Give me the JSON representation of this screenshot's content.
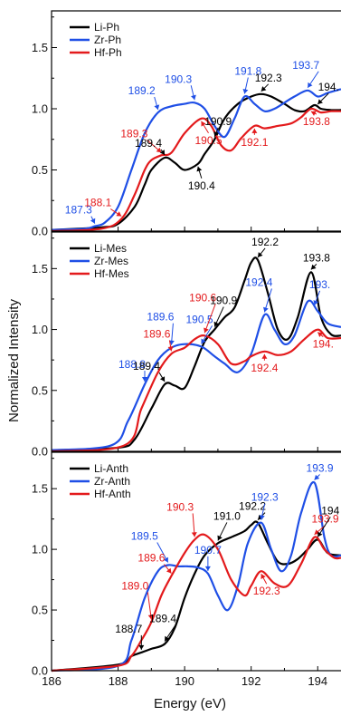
{
  "figure": {
    "ylabel": "Normalized Intensity",
    "xlabel": "Energy (eV)",
    "xlim": [
      186,
      194.7
    ],
    "xticks": [
      "186",
      "188",
      "190",
      "192",
      "194"
    ],
    "colors": {
      "Li": "#000000",
      "Zr": "#1f4fe6",
      "Hf": "#e31a1c"
    }
  },
  "chart_data": [
    {
      "type": "line",
      "panel": "top",
      "xlim": [
        186,
        194.7
      ],
      "ylim": [
        0,
        1.8
      ],
      "yticks": [
        "0.0",
        "0.5",
        "1.0",
        "1.5"
      ],
      "legend_position": "top-left",
      "series": [
        {
          "name": "Li-Ph",
          "color": "#000000",
          "x": [
            186,
            187.5,
            188.0,
            188.5,
            188.8,
            189.0,
            189.4,
            189.7,
            190.0,
            190.4,
            190.6,
            190.9,
            191.2,
            191.6,
            192.0,
            192.3,
            192.6,
            193.0,
            193.3,
            193.6,
            193.9,
            194.1,
            194.4,
            194.7
          ],
          "values": [
            0.01,
            0.03,
            0.06,
            0.2,
            0.38,
            0.5,
            0.6,
            0.56,
            0.5,
            0.55,
            0.63,
            0.75,
            0.92,
            1.04,
            1.1,
            1.12,
            1.1,
            1.04,
            0.99,
            0.98,
            1.03,
            1.0,
            0.99,
            0.99
          ]
        },
        {
          "name": "Zr-Ph",
          "color": "#1f4fe6",
          "x": [
            186,
            187.0,
            187.3,
            187.6,
            188.0,
            188.4,
            188.8,
            189.2,
            189.6,
            190.0,
            190.3,
            190.6,
            190.9,
            191.2,
            191.5,
            191.8,
            192.1,
            192.4,
            192.7,
            193.0,
            193.3,
            193.7,
            194.0,
            194.3,
            194.7
          ],
          "values": [
            0.01,
            0.02,
            0.04,
            0.07,
            0.2,
            0.5,
            0.8,
            0.97,
            1.02,
            1.04,
            1.05,
            1.0,
            0.86,
            0.77,
            0.92,
            1.1,
            1.04,
            0.98,
            1.0,
            1.05,
            1.1,
            1.15,
            1.1,
            1.13,
            1.16
          ]
        },
        {
          "name": "Hf-Ph",
          "color": "#e31a1c",
          "x": [
            186,
            187.5,
            188.1,
            188.5,
            188.8,
            189.0,
            189.3,
            189.6,
            190.0,
            190.5,
            190.8,
            191.1,
            191.4,
            191.7,
            192.1,
            192.4,
            192.8,
            193.2,
            193.5,
            193.8,
            194.1,
            194.4,
            194.7
          ],
          "values": [
            0.0,
            0.02,
            0.1,
            0.3,
            0.5,
            0.58,
            0.62,
            0.64,
            0.8,
            0.92,
            0.86,
            0.7,
            0.66,
            0.76,
            0.86,
            0.84,
            0.86,
            0.88,
            0.93,
            1.0,
            0.97,
            0.98,
            0.98
          ]
        }
      ],
      "annotations": [
        {
          "text": "187.3",
          "series": "Zr-Ph",
          "x": 187.3
        },
        {
          "text": "188.1",
          "series": "Hf-Ph",
          "x": 188.1
        },
        {
          "text": "189.2",
          "series": "Zr-Ph",
          "x": 189.2
        },
        {
          "text": "189.3",
          "series": "Hf-Ph",
          "x": 189.3
        },
        {
          "text": "189.4",
          "series": "Li-Ph",
          "x": 189.4
        },
        {
          "text": "190.3",
          "series": "Zr-Ph",
          "x": 190.3
        },
        {
          "text": "190.4",
          "series": "Li-Ph",
          "x": 190.4
        },
        {
          "text": "190.5",
          "series": "Hf-Ph",
          "x": 190.5
        },
        {
          "text": "190.9",
          "series": "Li-Ph",
          "x": 190.9
        },
        {
          "text": "191.8",
          "series": "Zr-Ph",
          "x": 191.8
        },
        {
          "text": "192.1",
          "series": "Hf-Ph",
          "x": 192.1
        },
        {
          "text": "192.3",
          "series": "Li-Ph",
          "x": 192.3
        },
        {
          "text": "193.7",
          "series": "Zr-Ph",
          "x": 193.7
        },
        {
          "text": "193.8",
          "series": "Hf-Ph",
          "x": 193.8
        },
        {
          "text": "194.",
          "series": "Li-Ph",
          "x": 194.0
        }
      ]
    },
    {
      "type": "line",
      "panel": "middle",
      "xlim": [
        186,
        194.7
      ],
      "ylim": [
        0,
        1.8
      ],
      "yticks": [
        "0.0",
        "0.5",
        "1.0",
        "1.5"
      ],
      "legend_position": "top-left",
      "series": [
        {
          "name": "Li-Mes",
          "color": "#000000",
          "x": [
            186,
            188.0,
            188.5,
            189.0,
            189.4,
            189.7,
            190.0,
            190.3,
            190.6,
            190.9,
            191.2,
            191.5,
            191.8,
            192.0,
            192.2,
            192.5,
            192.8,
            193.1,
            193.4,
            193.8,
            194.1,
            194.4,
            194.7
          ],
          "values": [
            0.01,
            0.03,
            0.1,
            0.35,
            0.55,
            0.54,
            0.52,
            0.7,
            0.9,
            1.0,
            1.1,
            1.18,
            1.4,
            1.55,
            1.57,
            1.3,
            1.0,
            0.92,
            1.1,
            1.47,
            1.1,
            0.96,
            0.95
          ]
        },
        {
          "name": "Zr-Mes",
          "color": "#1f4fe6",
          "x": [
            186,
            187.8,
            188.3,
            188.8,
            189.2,
            189.6,
            190.0,
            190.5,
            190.9,
            191.2,
            191.6,
            192.0,
            192.4,
            192.7,
            193.0,
            193.3,
            193.7,
            194.0,
            194.3,
            194.7
          ],
          "values": [
            0.01,
            0.05,
            0.25,
            0.55,
            0.75,
            0.85,
            0.88,
            0.86,
            0.78,
            0.72,
            0.65,
            0.8,
            1.12,
            1.0,
            0.88,
            0.95,
            1.23,
            1.15,
            1.05,
            1.02
          ]
        },
        {
          "name": "Hf-Mes",
          "color": "#e31a1c",
          "x": [
            186,
            188.2,
            188.7,
            189.2,
            189.6,
            190.0,
            190.3,
            190.6,
            191.0,
            191.4,
            191.8,
            192.0,
            192.4,
            192.8,
            193.2,
            193.6,
            194.0,
            194.3,
            194.7
          ],
          "values": [
            0.0,
            0.05,
            0.35,
            0.65,
            0.8,
            0.85,
            0.92,
            0.95,
            0.88,
            0.72,
            0.74,
            0.78,
            0.82,
            0.79,
            0.82,
            0.92,
            1.0,
            0.93,
            0.93
          ]
        }
      ],
      "annotations": [
        {
          "text": "188.8",
          "series": "Zr-Mes",
          "x": 188.8
        },
        {
          "text": "189.4",
          "series": "Li-Mes",
          "x": 189.4
        },
        {
          "text": "189.6",
          "series": "Zr-Mes",
          "x": 189.6
        },
        {
          "text": "189.6",
          "series": "Hf-Mes",
          "x": 189.6
        },
        {
          "text": "190.5",
          "series": "Zr-Mes",
          "x": 190.5
        },
        {
          "text": "190.6",
          "series": "Hf-Mes",
          "x": 190.6
        },
        {
          "text": "190.9",
          "series": "Li-Mes",
          "x": 190.9
        },
        {
          "text": "192.2",
          "series": "Li-Mes",
          "x": 192.2
        },
        {
          "text": "192.4",
          "series": "Zr-Mes",
          "x": 192.4
        },
        {
          "text": "192.4",
          "series": "Hf-Mes",
          "x": 192.4
        },
        {
          "text": "193.8",
          "series": "Li-Mes",
          "x": 193.8
        },
        {
          "text": "193.",
          "series": "Zr-Mes",
          "x": 193.9
        },
        {
          "text": "194.",
          "series": "Hf-Mes",
          "x": 194.0
        }
      ]
    },
    {
      "type": "line",
      "panel": "bottom",
      "xlim": [
        186,
        194.7
      ],
      "ylim": [
        0,
        1.8
      ],
      "yticks": [
        "0.0",
        "0.5",
        "1.0",
        "1.5"
      ],
      "xticks": [
        "186",
        "188",
        "190",
        "192",
        "194"
      ],
      "legend_position": "top-left",
      "series": [
        {
          "name": "Li-Anth",
          "color": "#000000",
          "x": [
            186,
            188.0,
            188.4,
            188.7,
            189.0,
            189.4,
            189.7,
            190.0,
            190.3,
            190.6,
            191.0,
            191.4,
            191.8,
            192.0,
            192.2,
            192.5,
            192.8,
            193.1,
            193.4,
            193.7,
            194.0,
            194.3,
            194.7
          ],
          "values": [
            0.0,
            0.05,
            0.12,
            0.15,
            0.18,
            0.22,
            0.35,
            0.6,
            0.8,
            0.95,
            1.05,
            1.1,
            1.15,
            1.2,
            1.22,
            1.05,
            0.9,
            0.88,
            0.92,
            1.0,
            1.08,
            0.97,
            0.95
          ]
        },
        {
          "name": "Zr-Anth",
          "color": "#1f4fe6",
          "x": [
            186,
            188.0,
            188.4,
            188.8,
            189.2,
            189.5,
            189.8,
            190.1,
            190.4,
            190.7,
            191.0,
            191.3,
            191.6,
            191.9,
            192.3,
            192.6,
            192.9,
            193.2,
            193.5,
            193.9,
            194.2,
            194.4,
            194.7
          ],
          "values": [
            0.0,
            0.04,
            0.25,
            0.6,
            0.82,
            0.87,
            0.86,
            0.86,
            0.85,
            0.8,
            0.62,
            0.5,
            0.7,
            1.05,
            1.22,
            1.0,
            0.82,
            0.95,
            1.3,
            1.55,
            1.1,
            0.95,
            0.95
          ]
        },
        {
          "name": "Hf-Anth",
          "color": "#e31a1c",
          "x": [
            186,
            188.0,
            188.4,
            188.7,
            189.0,
            189.3,
            189.6,
            190.0,
            190.3,
            190.6,
            191.0,
            191.4,
            191.8,
            192.0,
            192.3,
            192.7,
            193.1,
            193.5,
            193.9,
            194.2,
            194.5,
            194.7
          ],
          "values": [
            0.0,
            0.04,
            0.12,
            0.25,
            0.4,
            0.62,
            0.78,
            0.97,
            1.08,
            1.12,
            1.0,
            0.75,
            0.62,
            0.7,
            0.82,
            0.72,
            0.7,
            0.88,
            1.1,
            1.0,
            0.93,
            0.93
          ]
        }
      ],
      "annotations": [
        {
          "text": "188.7",
          "series": "Li-Anth",
          "x": 188.7
        },
        {
          "text": "189.0",
          "series": "Hf-Anth",
          "x": 189.0
        },
        {
          "text": "189.4",
          "series": "Li-Anth",
          "x": 189.4
        },
        {
          "text": "189.5",
          "series": "Zr-Anth",
          "x": 189.5
        },
        {
          "text": "189.6",
          "series": "Hf-Anth",
          "x": 189.6
        },
        {
          "text": "190.3",
          "series": "Hf-Anth",
          "x": 190.3
        },
        {
          "text": "190.7",
          "series": "Zr-Anth",
          "x": 190.7
        },
        {
          "text": "191.0",
          "series": "Li-Anth",
          "x": 191.0
        },
        {
          "text": "192.2",
          "series": "Li-Anth",
          "x": 192.2
        },
        {
          "text": "192.3",
          "series": "Zr-Anth",
          "x": 192.3
        },
        {
          "text": "192.3",
          "series": "Hf-Anth",
          "x": 192.3
        },
        {
          "text": "193.9",
          "series": "Zr-Anth",
          "x": 193.9
        },
        {
          "text": "193.9",
          "series": "Hf-Anth",
          "x": 193.9
        },
        {
          "text": "194",
          "series": "Li-Anth",
          "x": 194.0
        }
      ]
    }
  ]
}
